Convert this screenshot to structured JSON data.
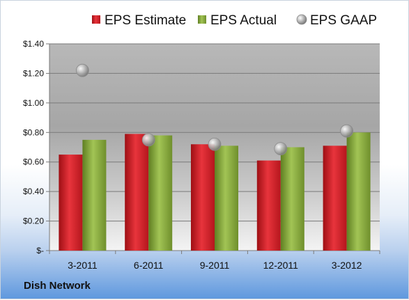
{
  "chart_data": {
    "type": "bar",
    "categories": [
      "3-2011",
      "6-2011",
      "9-2011",
      "12-2011",
      "3-2012"
    ],
    "series": [
      {
        "name": "EPS Estimate",
        "kind": "bar",
        "values": [
          0.65,
          0.79,
          0.72,
          0.61,
          0.71
        ]
      },
      {
        "name": "EPS Actual",
        "kind": "bar",
        "values": [
          0.75,
          0.78,
          0.71,
          0.7,
          0.8
        ]
      },
      {
        "name": "EPS GAAP",
        "kind": "scatter",
        "values": [
          1.22,
          0.75,
          0.72,
          0.69,
          0.81
        ]
      }
    ],
    "yticks": [
      "$-",
      "$0.20",
      "$0.40",
      "$0.60",
      "$0.80",
      "$1.00",
      "$1.20",
      "$1.40"
    ],
    "ylim": [
      0,
      1.4
    ],
    "grid": true,
    "legend_position": "top",
    "colors": {
      "estimate": "#d9262e",
      "actual": "#8cb23f",
      "gaap": "#b5b5b5"
    }
  },
  "company": "Dish Network"
}
